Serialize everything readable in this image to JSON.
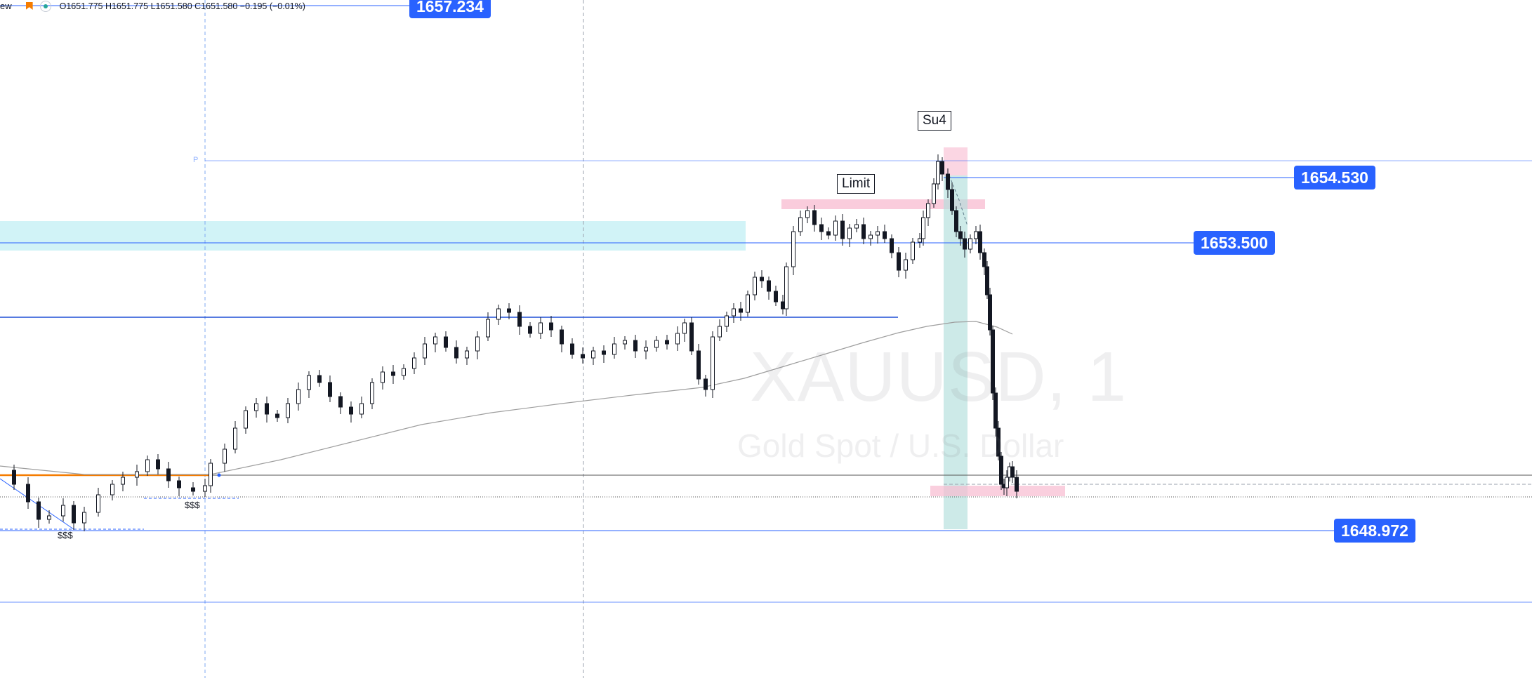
{
  "legend": {
    "symbol_fragment": "ew",
    "ohlc_text": "O1651.775  H1651.775  L1651.580  C1651.580  −0.195  (−0.01%)"
  },
  "price_tags": {
    "top": "1657.234",
    "p1": "1654.530",
    "p2": "1653.500",
    "p3": "1648.972"
  },
  "labels": {
    "limit": "Limit",
    "su4": "Su4",
    "sss_left": "$$$",
    "sss_right": "$$$",
    "p_mark": "P"
  },
  "watermark": {
    "symbol": "XAUUSD, 1",
    "description": "Gold Spot / U.S. Dollar"
  },
  "colors": {
    "up_candle": "#131722",
    "down_candle": "#131722",
    "price_line": "#2962ff",
    "zone_cyan": "#b2ebf2",
    "zone_pink": "#f8bbd0",
    "orange_line": "#f57c00",
    "ma_line": "#9e9e9e"
  }
}
